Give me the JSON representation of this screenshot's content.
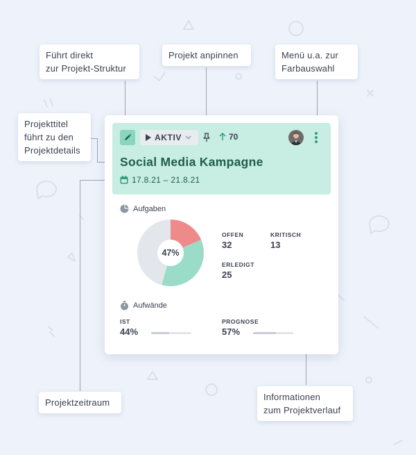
{
  "callouts": {
    "edit": "Führt direkt\nzur Projekt-Struktur",
    "pin": "Projekt anpinnen",
    "menu": "Menü u.a. zur\nFarbauswahl",
    "title": "Projekttitel\nführt zu den\nProjektdetails",
    "period": "Projektzeitraum",
    "info": "Informationen\nzum Projektverlauf"
  },
  "card": {
    "status_label": "AKTIV",
    "upvotes": "70",
    "title": "Social Media Kampagne",
    "date_range": "17.8.21 – 21.8.21",
    "tasks": {
      "label": "Aufgaben",
      "percent_label": "47%",
      "open_label": "OFFEN",
      "open_value": "32",
      "critical_label": "KRITISCH",
      "critical_value": "13",
      "done_label": "ERLEDIGT",
      "done_value": "25"
    },
    "efforts": {
      "label": "Aufwände",
      "actual_label": "IST",
      "actual_value": "44%",
      "actual_fraction": 0.44,
      "forecast_label": "PROGNOSE",
      "forecast_value": "57%",
      "forecast_fraction": 0.57
    }
  },
  "colors": {
    "header_bg": "#c8ede2",
    "accent": "#8ad5bd",
    "critical": "#ef8a8a",
    "done": "#9adcc7",
    "open": "#e3e6ea",
    "title": "#1f5d4b"
  },
  "icons": [
    "pencil-icon",
    "play-icon",
    "chevron-down-icon",
    "pin-icon",
    "arrow-up-icon",
    "kebab-menu-icon",
    "calendar-icon",
    "pie-chart-icon",
    "stopwatch-icon"
  ]
}
